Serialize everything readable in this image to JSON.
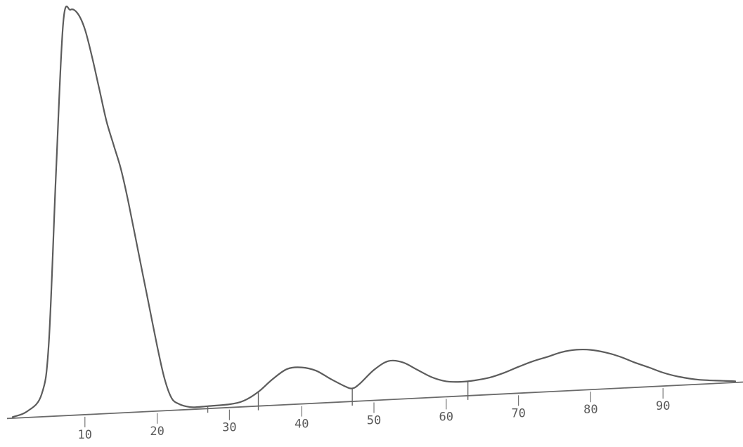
{
  "chart_data": {
    "type": "line",
    "title": "",
    "xlabel": "",
    "ylabel": "",
    "x_ticks": [
      10,
      20,
      30,
      40,
      50,
      60,
      70,
      80,
      90
    ],
    "tick_labels": [
      "10",
      "20",
      "30",
      "40",
      "50",
      "60",
      "70",
      "80",
      "90"
    ],
    "xlim": [
      0,
      100
    ],
    "ylim": [
      0,
      100
    ],
    "grid": false,
    "legend": "none",
    "series": [
      {
        "color": "#5c5c5c",
        "x": [
          0,
          2,
          4,
          5,
          6,
          7,
          8,
          9,
          10,
          11,
          12,
          13,
          14,
          15,
          16,
          17,
          18,
          19,
          20,
          21,
          22,
          23,
          24,
          25,
          27,
          30,
          32,
          34,
          36,
          38,
          40,
          42,
          44,
          46,
          47,
          48,
          50,
          52,
          54,
          56,
          58,
          60,
          62,
          64,
          66,
          68,
          70,
          72,
          74,
          76,
          78,
          80,
          82,
          84,
          86,
          88,
          90,
          92,
          95,
          100
        ],
        "y": [
          0.3,
          1.5,
          5.5,
          18,
          60,
          97,
          100,
          99,
          95,
          88,
          80,
          72,
          66,
          60,
          52,
          43,
          34,
          25,
          16,
          8,
          3,
          1.5,
          0.8,
          0.5,
          0.6,
          0.8,
          1.5,
          3.5,
          6.5,
          8.8,
          9.0,
          8.0,
          5.8,
          3.8,
          3.2,
          4.2,
          7.5,
          9.5,
          9.0,
          7.0,
          5.0,
          3.8,
          3.5,
          3.7,
          4.2,
          5.2,
          6.5,
          7.7,
          8.6,
          9.6,
          10.0,
          9.8,
          9.0,
          7.8,
          6.2,
          4.8,
          3.3,
          2.2,
          1.1,
          0.3
        ]
      }
    ],
    "fraction_markers": [
      27,
      34,
      47,
      63
    ]
  }
}
